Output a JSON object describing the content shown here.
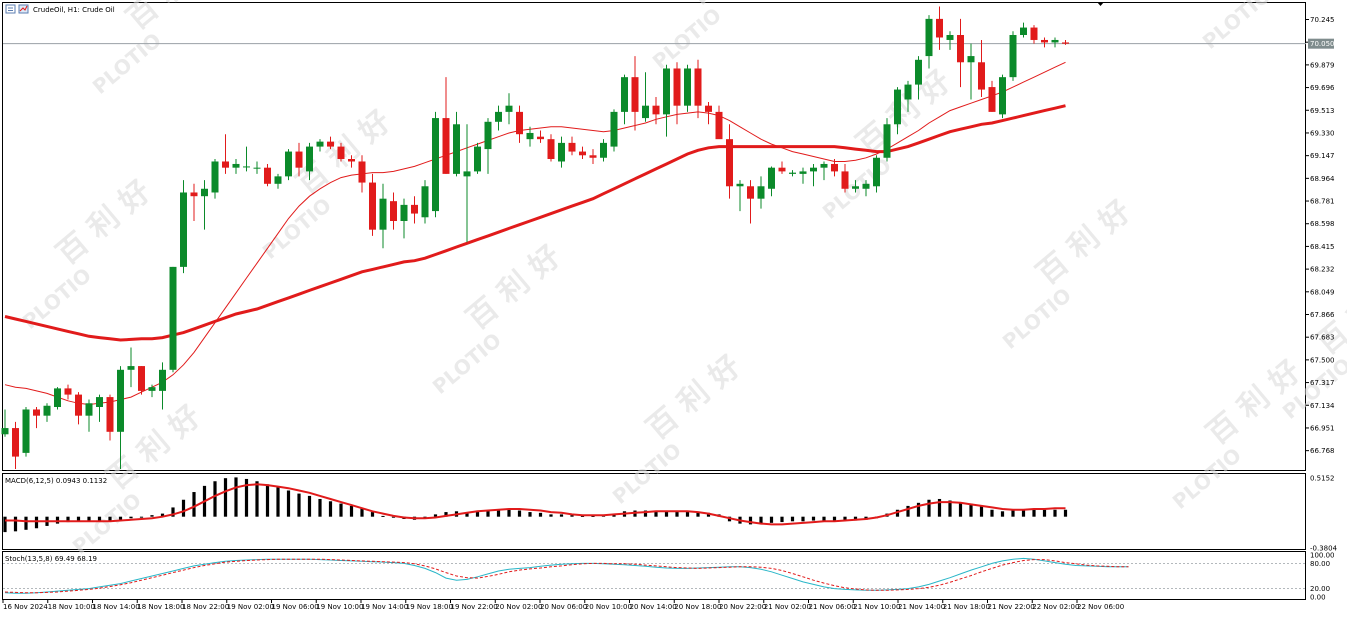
{
  "header": {
    "title": "CrudeOil, H1:  Crude Oil"
  },
  "watermark": {
    "brand": "PLOTIO",
    "chinese": "百 利 好"
  },
  "colors": {
    "bull": "#0b8a2a",
    "bear": "#e11b1b",
    "ma": "#e11b1b",
    "macd_hist": "#000000",
    "macd_signal": "#e11b1b",
    "stoch_main": "#29b6c8",
    "stoch_signal": "#e11b1b",
    "grid": "#c8c8c8"
  },
  "chart_data": [
    {
      "type": "candlestick",
      "title": "CrudeOil, H1:  Crude Oil",
      "ylim": [
        66.62,
        70.37
      ],
      "price_ticks": [
        "70.245",
        "70.062",
        "69.879",
        "69.696",
        "69.513",
        "69.330",
        "69.147",
        "68.964",
        "68.781",
        "68.598",
        "68.415",
        "68.232",
        "68.049",
        "67.866",
        "67.683",
        "67.500",
        "67.317",
        "67.134",
        "66.951",
        "66.768"
      ],
      "current_price_label": "70.050",
      "current_price": 70.05,
      "time_labels": [
        "16 Nov 2024",
        "18 Nov 10:00",
        "18 Nov 14:00",
        "18 Nov 18:00",
        "18 Nov 22:00",
        "19 Nov 02:00",
        "19 Nov 06:00",
        "19 Nov 10:00",
        "19 Nov 14:00",
        "19 Nov 18:00",
        "19 Nov 22:00",
        "20 Nov 02:00",
        "20 Nov 06:00",
        "20 Nov 10:00",
        "20 Nov 14:00",
        "20 Nov 18:00",
        "20 Nov 22:00",
        "21 Nov 02:00",
        "21 Nov 06:00",
        "21 Nov 10:00",
        "21 Nov 14:00",
        "21 Nov 18:00",
        "21 Nov 22:00",
        "22 Nov 02:00",
        "22 Nov 06:00"
      ],
      "candles": [
        [
          66.9,
          67.1,
          66.88,
          66.95
        ],
        [
          66.95,
          67.0,
          66.62,
          66.72
        ],
        [
          66.75,
          67.12,
          66.72,
          67.1
        ],
        [
          67.1,
          67.12,
          66.95,
          67.05
        ],
        [
          67.05,
          67.15,
          67.0,
          67.13
        ],
        [
          67.12,
          67.28,
          67.1,
          67.27
        ],
        [
          67.27,
          67.3,
          67.18,
          67.22
        ],
        [
          67.22,
          67.24,
          66.98,
          67.05
        ],
        [
          67.05,
          67.18,
          66.92,
          67.15
        ],
        [
          67.12,
          67.22,
          67.0,
          67.2
        ],
        [
          67.2,
          67.22,
          66.85,
          66.92
        ],
        [
          66.92,
          67.45,
          66.62,
          67.42
        ],
        [
          67.42,
          67.6,
          67.28,
          67.45
        ],
        [
          67.45,
          67.45,
          67.22,
          67.25
        ],
        [
          67.25,
          67.3,
          67.2,
          67.28
        ],
        [
          67.25,
          67.48,
          67.1,
          67.42
        ],
        [
          67.42,
          68.25,
          67.4,
          68.25
        ],
        [
          68.25,
          68.95,
          68.2,
          68.85
        ],
        [
          68.85,
          68.92,
          68.62,
          68.82
        ],
        [
          68.82,
          68.95,
          68.55,
          68.88
        ],
        [
          68.85,
          69.12,
          68.8,
          69.1
        ],
        [
          69.1,
          69.32,
          69.0,
          69.05
        ],
        [
          69.05,
          69.12,
          69.0,
          69.08
        ],
        [
          69.06,
          69.22,
          69.02,
          69.06
        ],
        [
          69.05,
          69.1,
          69.0,
          69.05
        ],
        [
          69.05,
          69.08,
          68.9,
          68.92
        ],
        [
          68.92,
          69.0,
          68.88,
          68.98
        ],
        [
          68.98,
          69.2,
          68.95,
          69.18
        ],
        [
          69.18,
          69.25,
          68.98,
          69.05
        ],
        [
          69.02,
          69.25,
          68.95,
          69.22
        ],
        [
          69.22,
          69.28,
          69.18,
          69.26
        ],
        [
          69.26,
          69.3,
          69.2,
          69.22
        ],
        [
          69.22,
          69.25,
          69.1,
          69.12
        ],
        [
          69.12,
          69.15,
          69.05,
          69.1
        ],
        [
          69.1,
          69.15,
          68.85,
          68.93
        ],
        [
          68.93,
          69.0,
          68.5,
          68.55
        ],
        [
          68.55,
          68.92,
          68.4,
          68.8
        ],
        [
          68.78,
          68.85,
          68.55,
          68.62
        ],
        [
          68.62,
          68.8,
          68.48,
          68.75
        ],
        [
          68.75,
          68.82,
          68.6,
          68.68
        ],
        [
          68.65,
          68.95,
          68.6,
          68.9
        ],
        [
          68.7,
          69.5,
          68.65,
          69.45
        ],
        [
          69.45,
          69.78,
          69.0,
          69.0
        ],
        [
          69.0,
          69.5,
          68.98,
          69.4
        ],
        [
          68.98,
          69.4,
          68.45,
          69.02
        ],
        [
          69.02,
          69.25,
          69.0,
          69.22
        ],
        [
          69.2,
          69.45,
          69.0,
          69.42
        ],
        [
          69.42,
          69.55,
          69.35,
          69.5
        ],
        [
          69.5,
          69.65,
          69.4,
          69.55
        ],
        [
          69.5,
          69.55,
          69.25,
          69.32
        ],
        [
          69.28,
          69.38,
          69.22,
          69.33
        ],
        [
          69.3,
          69.35,
          69.25,
          69.28
        ],
        [
          69.28,
          69.32,
          69.1,
          69.12
        ],
        [
          69.1,
          69.3,
          69.05,
          69.25
        ],
        [
          69.25,
          69.3,
          69.15,
          69.18
        ],
        [
          69.18,
          69.22,
          69.12,
          69.15
        ],
        [
          69.15,
          69.2,
          69.08,
          69.13
        ],
        [
          69.13,
          69.28,
          69.1,
          69.25
        ],
        [
          69.22,
          69.52,
          69.18,
          69.5
        ],
        [
          69.5,
          69.8,
          69.4,
          69.78
        ],
        [
          69.78,
          69.95,
          69.35,
          69.5
        ],
        [
          69.45,
          69.82,
          69.42,
          69.55
        ],
        [
          69.55,
          69.62,
          69.4,
          69.48
        ],
        [
          69.48,
          69.88,
          69.3,
          69.85
        ],
        [
          69.85,
          69.9,
          69.4,
          69.55
        ],
        [
          69.55,
          69.88,
          69.5,
          69.85
        ],
        [
          69.85,
          69.92,
          69.45,
          69.55
        ],
        [
          69.55,
          69.58,
          69.4,
          69.5
        ],
        [
          69.5,
          69.55,
          69.3,
          69.28
        ],
        [
          69.28,
          69.4,
          68.8,
          68.9
        ],
        [
          68.9,
          68.95,
          68.7,
          68.92
        ],
        [
          68.9,
          68.95,
          68.6,
          68.8
        ],
        [
          68.8,
          68.98,
          68.72,
          68.9
        ],
        [
          68.88,
          69.06,
          68.82,
          69.05
        ],
        [
          69.05,
          69.1,
          69.0,
          69.02
        ],
        [
          69.0,
          69.03,
          68.98,
          69.01
        ],
        [
          69.0,
          69.05,
          68.92,
          69.02
        ],
        [
          69.02,
          69.08,
          68.9,
          69.05
        ],
        [
          69.05,
          69.1,
          68.95,
          69.08
        ],
        [
          69.08,
          69.12,
          68.98,
          69.02
        ],
        [
          69.02,
          69.08,
          68.85,
          68.88
        ],
        [
          68.88,
          68.95,
          68.85,
          68.9
        ],
        [
          68.88,
          68.95,
          68.82,
          68.92
        ],
        [
          68.9,
          69.15,
          68.85,
          69.13
        ],
        [
          69.13,
          69.45,
          69.1,
          69.4
        ],
        [
          69.4,
          69.7,
          69.32,
          69.68
        ],
        [
          69.6,
          69.75,
          69.5,
          69.72
        ],
        [
          69.72,
          69.95,
          69.6,
          69.92
        ],
        [
          69.95,
          70.28,
          69.85,
          70.25
        ],
        [
          70.25,
          70.35,
          70.0,
          70.1
        ],
        [
          70.08,
          70.15,
          70.0,
          70.12
        ],
        [
          70.12,
          70.25,
          69.7,
          69.9
        ],
        [
          69.9,
          70.05,
          69.6,
          69.95
        ],
        [
          69.9,
          70.08,
          69.62,
          69.68
        ],
        [
          69.7,
          69.75,
          69.5,
          69.5
        ],
        [
          69.48,
          69.8,
          69.45,
          69.78
        ],
        [
          69.78,
          70.15,
          69.75,
          70.12
        ],
        [
          70.12,
          70.22,
          70.1,
          70.18
        ],
        [
          70.18,
          70.2,
          70.05,
          70.08
        ],
        [
          70.08,
          70.1,
          70.02,
          70.06
        ],
        [
          70.06,
          70.1,
          70.02,
          70.08
        ],
        [
          70.06,
          70.08,
          70.04,
          70.05
        ]
      ],
      "ma_slow": [
        67.85,
        67.83,
        67.81,
        67.79,
        67.77,
        67.75,
        67.73,
        67.71,
        67.69,
        67.68,
        67.67,
        67.66,
        67.665,
        67.67,
        67.67,
        67.68,
        67.7,
        67.72,
        67.75,
        67.78,
        67.81,
        67.84,
        67.87,
        67.89,
        67.91,
        67.94,
        67.97,
        68.0,
        68.03,
        68.06,
        68.09,
        68.12,
        68.15,
        68.18,
        68.21,
        68.23,
        68.25,
        68.27,
        68.29,
        68.3,
        68.32,
        68.35,
        68.38,
        68.41,
        68.44,
        68.47,
        68.5,
        68.53,
        68.56,
        68.59,
        68.62,
        68.65,
        68.68,
        68.71,
        68.74,
        68.77,
        68.8,
        68.84,
        68.88,
        68.92,
        68.96,
        69.0,
        69.04,
        69.08,
        69.12,
        69.16,
        69.19,
        69.21,
        69.22,
        69.22,
        69.22,
        69.22,
        69.22,
        69.22,
        69.22,
        69.22,
        69.22,
        69.22,
        69.22,
        69.22,
        69.21,
        69.2,
        69.19,
        69.18,
        69.18,
        69.2,
        69.22,
        69.25,
        69.28,
        69.31,
        69.34,
        69.36,
        69.38,
        69.4,
        69.41,
        69.43,
        69.45,
        69.47,
        69.49,
        69.51,
        69.53,
        69.55
      ],
      "ma_fast": [
        67.3,
        67.28,
        67.27,
        67.25,
        67.23,
        67.2,
        67.17,
        67.15,
        67.14,
        67.15,
        67.16,
        67.18,
        67.2,
        67.24,
        67.28,
        67.32,
        67.38,
        67.46,
        67.56,
        67.68,
        67.8,
        67.92,
        68.04,
        68.16,
        68.28,
        68.4,
        68.52,
        68.64,
        68.74,
        68.82,
        68.88,
        68.93,
        68.97,
        68.99,
        69.0,
        69.01,
        69.01,
        69.02,
        69.04,
        69.06,
        69.09,
        69.12,
        69.15,
        69.18,
        69.21,
        69.24,
        69.27,
        69.3,
        69.33,
        69.35,
        69.36,
        69.37,
        69.38,
        69.38,
        69.37,
        69.36,
        69.35,
        69.34,
        69.35,
        69.37,
        69.39,
        69.41,
        69.44,
        69.46,
        69.48,
        69.49,
        69.5,
        69.49,
        69.47,
        69.43,
        69.38,
        69.33,
        69.28,
        69.24,
        69.21,
        69.18,
        69.16,
        69.14,
        69.12,
        69.1,
        69.1,
        69.11,
        69.13,
        69.16,
        69.2,
        69.25,
        69.3,
        69.35,
        69.41,
        69.46,
        69.51,
        69.54,
        69.57,
        69.6,
        69.63,
        69.66,
        69.7,
        69.74,
        69.78,
        69.82,
        69.86,
        69.9
      ]
    },
    {
      "type": "bar",
      "title": "MACD(6,12,5) 0.0943 0.1132",
      "ylim": [
        -0.3804,
        0.5152
      ],
      "ticks": [
        "0.5152",
        "-0.3804"
      ],
      "histogram": [
        -0.2,
        -0.19,
        -0.17,
        -0.15,
        -0.12,
        -0.09,
        -0.07,
        -0.06,
        -0.06,
        -0.05,
        -0.05,
        -0.04,
        -0.02,
        0.0,
        0.02,
        0.04,
        0.12,
        0.22,
        0.32,
        0.4,
        0.46,
        0.5,
        0.51,
        0.49,
        0.46,
        0.42,
        0.38,
        0.34,
        0.3,
        0.27,
        0.23,
        0.2,
        0.17,
        0.14,
        0.11,
        0.06,
        0.01,
        -0.01,
        -0.03,
        -0.04,
        -0.03,
        0.03,
        0.06,
        0.07,
        0.06,
        0.07,
        0.08,
        0.09,
        0.1,
        0.08,
        0.06,
        0.05,
        0.03,
        0.03,
        0.02,
        0.01,
        0.01,
        0.02,
        0.04,
        0.07,
        0.08,
        0.08,
        0.07,
        0.08,
        0.07,
        0.07,
        0.06,
        0.05,
        0.03,
        -0.06,
        -0.09,
        -0.1,
        -0.09,
        -0.08,
        -0.07,
        -0.06,
        -0.06,
        -0.05,
        -0.05,
        -0.05,
        -0.05,
        -0.05,
        -0.04,
        -0.02,
        0.04,
        0.09,
        0.14,
        0.18,
        0.22,
        0.23,
        0.21,
        0.19,
        0.17,
        0.14,
        0.09,
        0.07,
        0.08,
        0.09,
        0.09,
        0.09,
        0.09,
        0.09
      ],
      "signal": [
        -0.05,
        -0.05,
        -0.06,
        -0.06,
        -0.06,
        -0.06,
        -0.06,
        -0.06,
        -0.06,
        -0.06,
        -0.06,
        -0.05,
        -0.04,
        -0.03,
        -0.02,
        0.0,
        0.03,
        0.07,
        0.13,
        0.2,
        0.27,
        0.33,
        0.38,
        0.41,
        0.42,
        0.41,
        0.39,
        0.37,
        0.34,
        0.31,
        0.27,
        0.23,
        0.19,
        0.15,
        0.11,
        0.07,
        0.04,
        0.01,
        -0.01,
        -0.02,
        -0.02,
        -0.01,
        0.01,
        0.03,
        0.05,
        0.07,
        0.08,
        0.09,
        0.1,
        0.1,
        0.09,
        0.08,
        0.06,
        0.05,
        0.03,
        0.02,
        0.02,
        0.02,
        0.03,
        0.04,
        0.05,
        0.06,
        0.07,
        0.07,
        0.07,
        0.07,
        0.06,
        0.04,
        0.01,
        -0.02,
        -0.05,
        -0.07,
        -0.09,
        -0.1,
        -0.1,
        -0.09,
        -0.08,
        -0.07,
        -0.06,
        -0.06,
        -0.05,
        -0.04,
        -0.03,
        -0.01,
        0.02,
        0.06,
        0.1,
        0.14,
        0.17,
        0.19,
        0.19,
        0.18,
        0.16,
        0.14,
        0.12,
        0.1,
        0.09,
        0.09,
        0.1,
        0.1,
        0.11,
        0.11
      ]
    },
    {
      "type": "line",
      "title": "Stoch(13,5,8) 69.49 68.19",
      "ylim": [
        0,
        100
      ],
      "ticks": [
        "100.00",
        "80.00",
        "20.00",
        "0.00"
      ],
      "levels": [
        80,
        20
      ],
      "k": [
        10,
        9,
        9,
        10,
        12,
        14,
        16,
        18,
        20,
        24,
        28,
        32,
        38,
        44,
        50,
        56,
        62,
        68,
        74,
        78,
        82,
        85,
        87,
        88,
        89,
        90,
        90,
        90,
        90,
        90,
        89,
        88,
        87,
        86,
        85,
        84,
        83,
        82,
        80,
        75,
        68,
        58,
        45,
        40,
        42,
        48,
        55,
        62,
        66,
        68,
        70,
        73,
        76,
        78,
        79,
        80,
        80,
        79,
        78,
        77,
        75,
        73,
        71,
        69,
        68,
        68,
        69,
        70,
        71,
        72,
        72,
        70,
        66,
        60,
        52,
        44,
        36,
        30,
        24,
        20,
        18,
        17,
        16,
        16,
        17,
        18,
        20,
        24,
        30,
        38,
        46,
        55,
        64,
        72,
        80,
        86,
        90,
        92,
        90,
        86,
        82,
        78,
        75,
        74,
        73,
        72,
        72,
        72
      ],
      "d": [
        12,
        11,
        10,
        10,
        11,
        12,
        14,
        16,
        18,
        21,
        25,
        29,
        34,
        40,
        46,
        52,
        58,
        64,
        70,
        75,
        79,
        83,
        85,
        87,
        88,
        89,
        90,
        90,
        90,
        90,
        90,
        89,
        88,
        87,
        86,
        85,
        84,
        83,
        82,
        79,
        74,
        67,
        58,
        50,
        46,
        45,
        49,
        54,
        60,
        64,
        67,
        69,
        72,
        74,
        77,
        79,
        80,
        80,
        79,
        79,
        78,
        76,
        74,
        72,
        70,
        69,
        68,
        69,
        70,
        71,
        72,
        72,
        71,
        68,
        63,
        56,
        48,
        40,
        33,
        27,
        22,
        19,
        17,
        16,
        16,
        17,
        18,
        20,
        23,
        28,
        35,
        43,
        51,
        60,
        68,
        76,
        82,
        87,
        89,
        89,
        86,
        82,
        79,
        76,
        74,
        73,
        72,
        72
      ]
    }
  ]
}
